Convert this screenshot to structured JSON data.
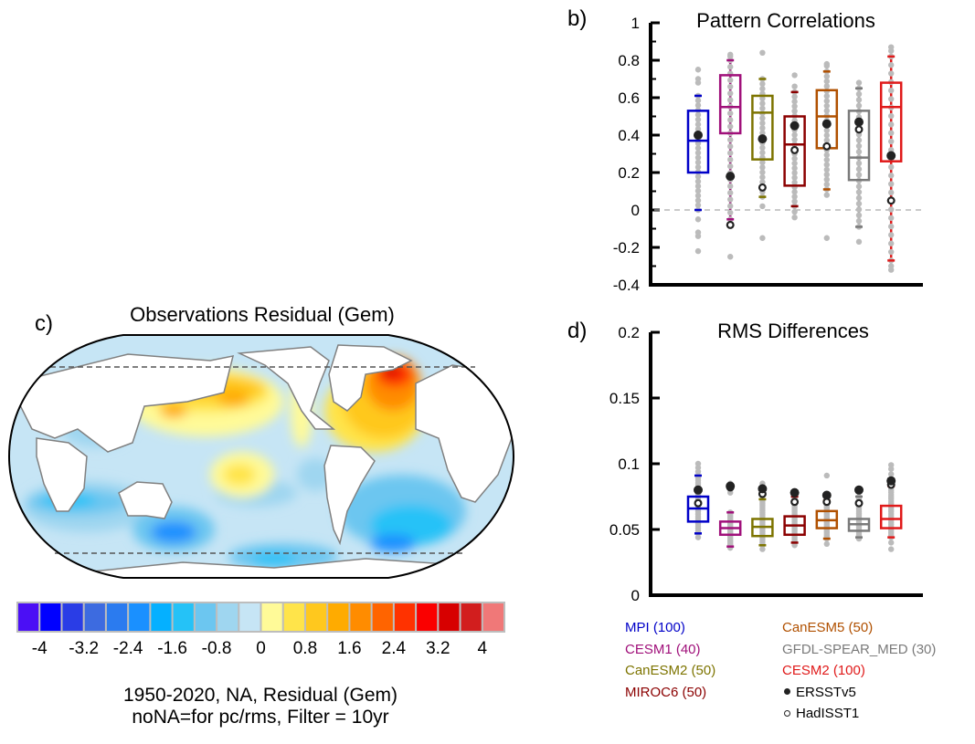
{
  "panels": {
    "b": {
      "letter": "b)",
      "title": "Pattern Correlations"
    },
    "c": {
      "letter": "c)",
      "title": "Observations Residual (Gem)"
    },
    "d": {
      "letter": "d)",
      "title": "RMS Differences"
    }
  },
  "caption": {
    "line1": "1950-2020, NA, Residual (Gem)",
    "line2": "noNA=for pc/rms, Filter = 10yr"
  },
  "legend": {
    "models": [
      {
        "label": "MPI (100)",
        "color": "#0000c8"
      },
      {
        "label": "CESM1 (40)",
        "color": "#a0107a"
      },
      {
        "label": "CanESM2 (50)",
        "color": "#7d7400"
      },
      {
        "label": "MIROC6 (50)",
        "color": "#8b0000"
      },
      {
        "label": "CanESM5 (50)",
        "color": "#b05000"
      },
      {
        "label": "GFDL-SPEAR_MED (30)",
        "color": "#7a7a7a"
      },
      {
        "label": "CESM2 (100)",
        "color": "#e01a1a"
      }
    ],
    "obs": [
      {
        "label": "ERSSTv5",
        "marker": "filled-circle"
      },
      {
        "label": "HadISST1",
        "marker": "open-circle"
      }
    ]
  },
  "colorbar": {
    "colors": [
      "#4b0ff5",
      "#0000ff",
      "#2a3de6",
      "#3d6be0",
      "#2b7bef",
      "#1a90ff",
      "#05b0ff",
      "#25c2f7",
      "#6cc6f0",
      "#9fd6f0",
      "#c6e5f5",
      "#fffa98",
      "#ffe44a",
      "#ffc81e",
      "#ffab00",
      "#ff8c00",
      "#ff6400",
      "#ff3200",
      "#fa0000",
      "#d70000",
      "#d21e1e",
      "#f07878"
    ],
    "tick_labels": [
      "-4",
      "-3.2",
      "-2.4",
      "-1.6",
      "-0.8",
      "0",
      "0.8",
      "1.6",
      "2.4",
      "3.2",
      "4"
    ]
  },
  "chart_data": [
    {
      "panel": "b",
      "type": "box",
      "title": "Pattern Correlations",
      "xlabel": "",
      "ylabel": "",
      "ylim": [
        -0.4,
        1.0
      ],
      "yticks": [
        -0.4,
        -0.2,
        0,
        0.2,
        0.4,
        0.6,
        0.8,
        1
      ],
      "ytick_labels": [
        "-0.4",
        "-0.2",
        "0",
        "0.2",
        "0.4",
        "0.6",
        "0.8",
        "1"
      ],
      "reference_line": 0,
      "categories": [
        "MPI",
        "CESM1",
        "CanESM2",
        "MIROC6",
        "CanESM5",
        "GFDL-SPEAR_MED",
        "CESM2"
      ],
      "series": [
        {
          "name": "MPI",
          "whisker_low": 0.0,
          "q1": 0.2,
          "median": 0.37,
          "q3": 0.53,
          "whisker_high": 0.61,
          "ersstv5": 0.4,
          "hadisst1": 0.4,
          "outliers": [
            0.75,
            0.7,
            0.68,
            -0.05,
            -0.12,
            -0.14,
            -0.22
          ]
        },
        {
          "name": "CESM1",
          "whisker_low": -0.05,
          "q1": 0.41,
          "median": 0.55,
          "q3": 0.72,
          "whisker_high": 0.8,
          "ersstv5": 0.18,
          "hadisst1": -0.08,
          "outliers": [
            0.83,
            0.82,
            -0.25
          ]
        },
        {
          "name": "CanESM2",
          "whisker_low": 0.07,
          "q1": 0.27,
          "median": 0.52,
          "q3": 0.61,
          "whisker_high": 0.7,
          "ersstv5": 0.38,
          "hadisst1": 0.12,
          "outliers": [
            0.84,
            0.02,
            -0.15
          ]
        },
        {
          "name": "MIROC6",
          "whisker_low": 0.02,
          "q1": 0.13,
          "median": 0.35,
          "q3": 0.5,
          "whisker_high": 0.63,
          "ersstv5": 0.45,
          "hadisst1": 0.32,
          "outliers": [
            0.72,
            0.66,
            -0.01,
            -0.04
          ]
        },
        {
          "name": "CanESM5",
          "whisker_low": 0.11,
          "q1": 0.33,
          "median": 0.5,
          "q3": 0.64,
          "whisker_high": 0.74,
          "ersstv5": 0.46,
          "hadisst1": 0.34,
          "outliers": [
            0.78,
            0.77,
            0.08,
            -0.15
          ]
        },
        {
          "name": "GFDL-SPEAR_MED",
          "whisker_low": -0.09,
          "q1": 0.16,
          "median": 0.28,
          "q3": 0.53,
          "whisker_high": 0.65,
          "ersstv5": 0.47,
          "hadisst1": 0.43,
          "outliers": [
            0.68,
            -0.17
          ]
        },
        {
          "name": "CESM2",
          "whisker_low": -0.27,
          "q1": 0.26,
          "median": 0.55,
          "q3": 0.68,
          "whisker_high": 0.82,
          "ersstv5": 0.29,
          "hadisst1": 0.05,
          "outliers": [
            0.87,
            0.85,
            -0.3,
            -0.32
          ]
        }
      ]
    },
    {
      "panel": "d",
      "type": "box",
      "title": "RMS Differences",
      "xlabel": "",
      "ylabel": "",
      "ylim": [
        0,
        0.2
      ],
      "yticks": [
        0,
        0.05,
        0.1,
        0.15,
        0.2
      ],
      "ytick_labels": [
        "0",
        "0.05",
        "0.1",
        "0.15",
        "0.2"
      ],
      "categories": [
        "MPI",
        "CESM1",
        "CanESM2",
        "MIROC6",
        "CanESM5",
        "GFDL-SPEAR_MED",
        "CESM2"
      ],
      "series": [
        {
          "name": "MPI",
          "whisker_low": 0.047,
          "q1": 0.056,
          "median": 0.066,
          "q3": 0.075,
          "whisker_high": 0.091,
          "ersstv5": 0.08,
          "hadisst1": 0.07,
          "outliers": [
            0.1,
            0.097,
            0.094,
            0.044
          ]
        },
        {
          "name": "CESM1",
          "whisker_low": 0.037,
          "q1": 0.046,
          "median": 0.051,
          "q3": 0.056,
          "whisker_high": 0.063,
          "ersstv5": 0.083,
          "hadisst1": 0.082,
          "outliers": [
            0.085,
            0.078,
            0.036
          ]
        },
        {
          "name": "CanESM2",
          "whisker_low": 0.038,
          "q1": 0.045,
          "median": 0.052,
          "q3": 0.058,
          "whisker_high": 0.073,
          "ersstv5": 0.081,
          "hadisst1": 0.077,
          "outliers": [
            0.085,
            0.035
          ]
        },
        {
          "name": "MIROC6",
          "whisker_low": 0.04,
          "q1": 0.046,
          "median": 0.053,
          "q3": 0.06,
          "whisker_high": 0.075,
          "ersstv5": 0.078,
          "hadisst1": 0.071,
          "outliers": [
            0.038
          ]
        },
        {
          "name": "CanESM5",
          "whisker_low": 0.043,
          "q1": 0.051,
          "median": 0.057,
          "q3": 0.064,
          "whisker_high": 0.072,
          "ersstv5": 0.076,
          "hadisst1": 0.071,
          "outliers": [
            0.091,
            0.039
          ]
        },
        {
          "name": "GFDL-SPEAR_MED",
          "whisker_low": 0.044,
          "q1": 0.049,
          "median": 0.054,
          "q3": 0.058,
          "whisker_high": 0.075,
          "ersstv5": 0.08,
          "hadisst1": 0.07,
          "outliers": [
            0.043
          ]
        },
        {
          "name": "CESM2",
          "whisker_low": 0.044,
          "q1": 0.051,
          "median": 0.058,
          "q3": 0.068,
          "whisker_high": 0.083,
          "ersstv5": 0.087,
          "hadisst1": 0.084,
          "outliers": [
            0.099,
            0.096,
            0.092,
            0.04,
            0.035
          ]
        }
      ]
    }
  ]
}
